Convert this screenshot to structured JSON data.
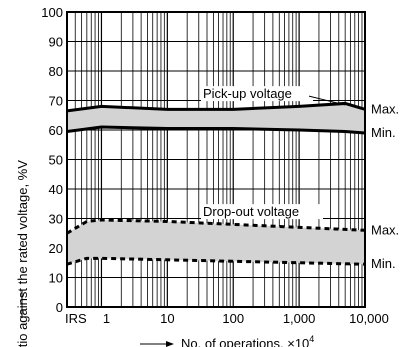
{
  "chart_data": {
    "type": "area",
    "title": "",
    "xlabel": "No. of operations, ×10",
    "xlabel_superscript": "4",
    "ylabel": "Ratio against the rated voltage, %V",
    "xscale": "log",
    "xlim": [
      0.3,
      10000
    ],
    "ylim": [
      0,
      100
    ],
    "yticks": [
      0,
      10,
      20,
      30,
      40,
      50,
      60,
      70,
      80,
      90,
      100
    ],
    "xticks": [
      {
        "label": "IRS",
        "position": "initial"
      },
      {
        "label": "1",
        "value": 1
      },
      {
        "label": "10",
        "value": 10
      },
      {
        "label": "100",
        "value": 100
      },
      {
        "label": "1,000",
        "value": 1000
      },
      {
        "label": "10,000",
        "value": 10000
      }
    ],
    "grid": true,
    "series": [
      {
        "name": "Pick-up voltage",
        "max_label": "Max.",
        "min_label": "Min.",
        "line_style": "solid",
        "x": [
          0.3,
          1,
          10,
          100,
          1000,
          5000,
          10000
        ],
        "max": [
          66.5,
          68,
          67,
          67,
          68,
          69,
          67
        ],
        "min": [
          59.5,
          61,
          60.5,
          60.5,
          60,
          59.5,
          59
        ]
      },
      {
        "name": "Drop-out voltage",
        "max_label": "Max.",
        "min_label": "Min.",
        "line_style": "dashed",
        "x": [
          0.3,
          0.6,
          1,
          10,
          100,
          1000,
          10000
        ],
        "max": [
          25,
          29,
          29.5,
          29,
          28,
          27,
          26
        ],
        "min": [
          14.5,
          16.5,
          16.5,
          16,
          15.5,
          15,
          14.5
        ]
      }
    ]
  }
}
